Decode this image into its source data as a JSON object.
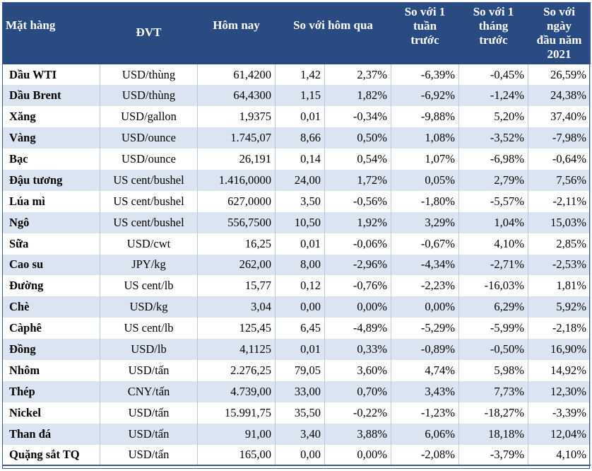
{
  "headers": {
    "item": "Mặt hàng",
    "unit": "ĐVT",
    "today": "Hôm nay",
    "vs_yesterday": "So với hôm qua",
    "vs_week_l1": "So với 1",
    "vs_week_l2": "tuần",
    "vs_week_l3": "trước",
    "vs_month_l1": "So với 1",
    "vs_month_l2": "tháng",
    "vs_month_l3": "trước",
    "vs_year_l1": "So với",
    "vs_year_l2": "ngày",
    "vs_year_l3": "đầu năm",
    "vs_year_l4": "2021"
  },
  "rows": [
    {
      "name": "Dầu WTI",
      "unit": "USD/thùng",
      "today": "61,4200",
      "chg": "1,42",
      "chg_pct": "2,37%",
      "week": "-6,39%",
      "month": "-0,45%",
      "ytd": "26,59%"
    },
    {
      "name": "Dầu Brent",
      "unit": "USD/thùng",
      "today": "64,4300",
      "chg": "1,15",
      "chg_pct": "1,82%",
      "week": "-6,92%",
      "month": "-1,24%",
      "ytd": "24,38%"
    },
    {
      "name": "Xăng",
      "unit": "USD/gallon",
      "today": "1,9375",
      "chg": "0,01",
      "chg_pct": "-0,34%",
      "week": "-9,88%",
      "month": "5,20%",
      "ytd": "37,40%"
    },
    {
      "name": "Vàng",
      "unit": "USD/ounce",
      "today": "1.745,07",
      "chg": "8,66",
      "chg_pct": "0,50%",
      "week": "1,08%",
      "month": "-3,52%",
      "ytd": "-7,98%"
    },
    {
      "name": "Bạc",
      "unit": "USD/ounce",
      "today": "26,191",
      "chg": "0,14",
      "chg_pct": "0,54%",
      "week": "1,07%",
      "month": "-6,98%",
      "ytd": "-0,64%"
    },
    {
      "name": "Đậu tương",
      "unit": "US cent/bushel",
      "today": "1.416,0000",
      "chg": "24,00",
      "chg_pct": "1,72%",
      "week": "0,05%",
      "month": "2,79%",
      "ytd": "7,56%"
    },
    {
      "name": "Lúa mì",
      "unit": "US cent/bushel",
      "today": "627,0000",
      "chg": "3,50",
      "chg_pct": "-0,56%",
      "week": "-1,80%",
      "month": "-5,57%",
      "ytd": "-2,11%"
    },
    {
      "name": "Ngô",
      "unit": "US cent/bushel",
      "today": "556,7500",
      "chg": "10,50",
      "chg_pct": "1,92%",
      "week": "3,29%",
      "month": "1,04%",
      "ytd": "15,03%"
    },
    {
      "name": "Sữa",
      "unit": "USD/cwt",
      "today": "16,25",
      "chg": "0,01",
      "chg_pct": "-0,06%",
      "week": "-0,67%",
      "month": "4,10%",
      "ytd": "2,85%"
    },
    {
      "name": "Cao su",
      "unit": "JPY/kg",
      "today": "262,00",
      "chg": "8,00",
      "chg_pct": "-2,96%",
      "week": "-4,34%",
      "month": "-2,71%",
      "ytd": "-2,53%"
    },
    {
      "name": "Đường",
      "unit": "US cent/lb",
      "today": "15,77",
      "chg": "0,12",
      "chg_pct": "-0,76%",
      "week": "-2,23%",
      "month": "-16,03%",
      "ytd": "1,81%"
    },
    {
      "name": "Chè",
      "unit": "USD/kg",
      "today": "3,04",
      "chg": "0,00",
      "chg_pct": "0,00%",
      "week": "0,00%",
      "month": "6,29%",
      "ytd": "5,92%"
    },
    {
      "name": "Càphê",
      "unit": "US cent/lb",
      "today": "125,45",
      "chg": "6,45",
      "chg_pct": "-4,89%",
      "week": "-5,29%",
      "month": "-5,99%",
      "ytd": "-2,18%"
    },
    {
      "name": "Đồng",
      "unit": "USD/lb",
      "today": "4,1125",
      "chg": "0,01",
      "chg_pct": "0,33%",
      "week": "-0,89%",
      "month": "-0,50%",
      "ytd": "16,90%"
    },
    {
      "name": "Nhôm",
      "unit": "USD/tấn",
      "today": "2.276,25",
      "chg": "79,05",
      "chg_pct": "3,60%",
      "week": "4,74%",
      "month": "5,98%",
      "ytd": "14,92%"
    },
    {
      "name": "Thép",
      "unit": "CNY/tấn",
      "today": "4.739,00",
      "chg": "33,00",
      "chg_pct": "0,70%",
      "week": "3,43%",
      "month": "7,73%",
      "ytd": "12,30%"
    },
    {
      "name": "Nickel",
      "unit": "USD/tấn",
      "today": "15.991,75",
      "chg": "35,50",
      "chg_pct": "-0,22%",
      "week": "-1,23%",
      "month": "-18,27%",
      "ytd": "-3,39%"
    },
    {
      "name": "Than đá",
      "unit": "USD/tấn",
      "today": "91,00",
      "chg": "3,40",
      "chg_pct": "3,88%",
      "week": "6,06%",
      "month": "18,18%",
      "ytd": "12,04%"
    },
    {
      "name": "Quặng sắt TQ",
      "unit": "USD/tấn",
      "today": "165,00",
      "chg": "0,00",
      "chg_pct": "0,00%",
      "week": "-2,08%",
      "month": "-3,79%",
      "ytd": "4,10%"
    }
  ]
}
